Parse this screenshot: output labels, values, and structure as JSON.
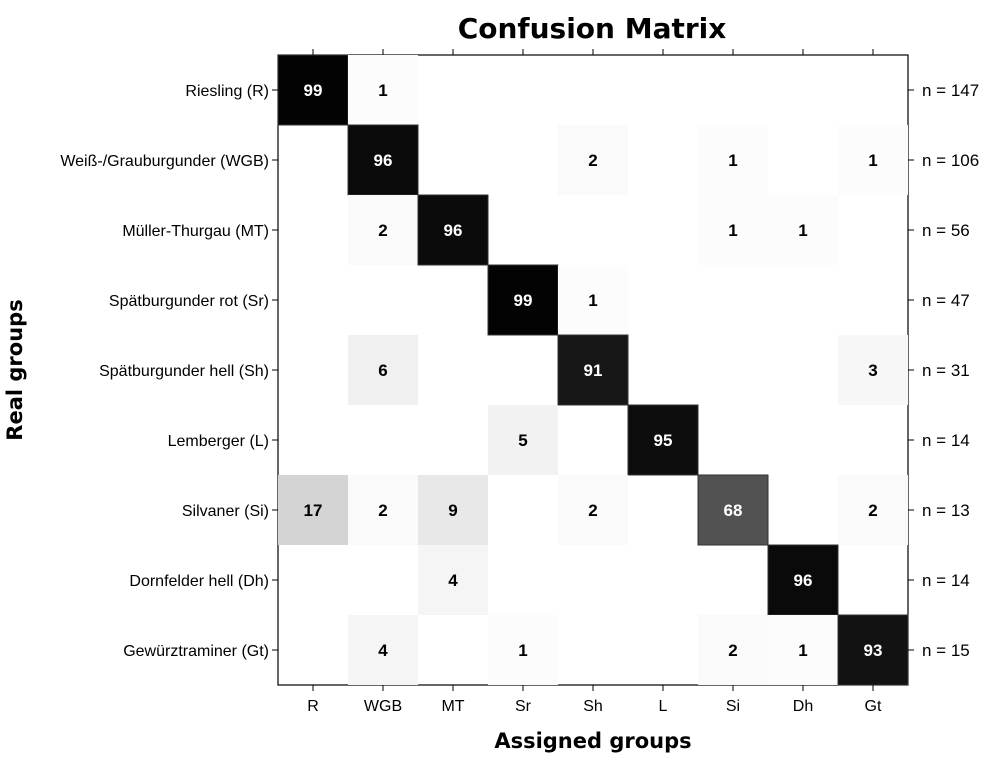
{
  "chart_data": {
    "type": "heatmap",
    "title": "Confusion Matrix",
    "xlabel": "Assigned groups",
    "ylabel": "Real groups",
    "rows": [
      "Riesling (R)",
      "Weiß-/Grauburgunder (WGB)",
      "Müller-Thurgau (MT)",
      "Spätburgunder rot (Sr)",
      "Spätburgunder hell (Sh)",
      "Lemberger (L)",
      "Silvaner (Si)",
      "Dornfelder hell (Dh)",
      "Gewürztraminer (Gt)"
    ],
    "columns": [
      "R",
      "WGB",
      "MT",
      "Sr",
      "Sh",
      "L",
      "Si",
      "Dh",
      "Gt"
    ],
    "counts": [
      "n = 147",
      "n = 106",
      "n = 56",
      "n = 47",
      "n = 31",
      "n = 14",
      "n = 13",
      "n = 14",
      "n = 15"
    ],
    "values": [
      [
        99,
        1,
        null,
        null,
        null,
        null,
        null,
        null,
        null
      ],
      [
        null,
        96,
        null,
        null,
        2,
        null,
        1,
        null,
        1
      ],
      [
        null,
        2,
        96,
        null,
        null,
        null,
        1,
        1,
        null
      ],
      [
        null,
        null,
        null,
        99,
        1,
        null,
        null,
        null,
        null
      ],
      [
        null,
        6,
        null,
        null,
        91,
        null,
        null,
        null,
        3
      ],
      [
        null,
        null,
        null,
        5,
        null,
        95,
        null,
        null,
        null
      ],
      [
        17,
        2,
        9,
        null,
        2,
        null,
        68,
        null,
        2
      ],
      [
        null,
        null,
        4,
        null,
        null,
        null,
        null,
        96,
        null
      ],
      [
        null,
        4,
        null,
        1,
        null,
        null,
        2,
        1,
        93
      ]
    ],
    "colors": {
      "high": "#000000",
      "mid": "#666666",
      "low": "#cccccc",
      "background": "#ffffff"
    }
  }
}
